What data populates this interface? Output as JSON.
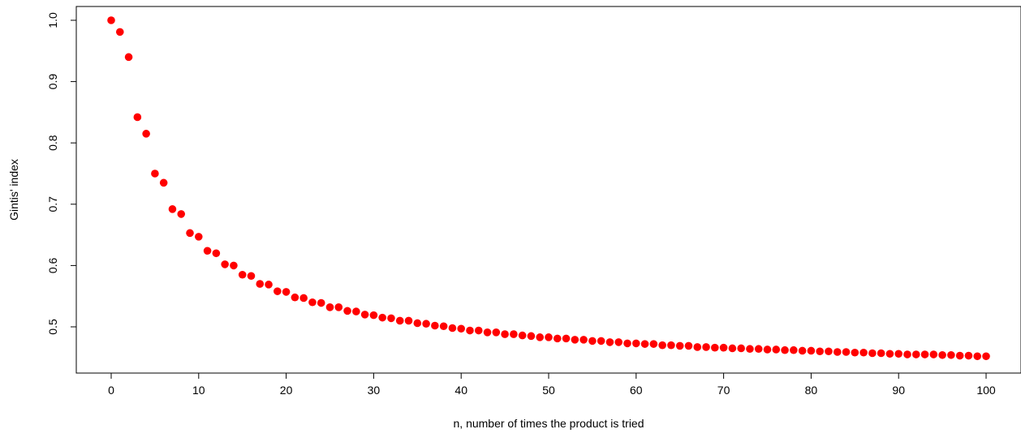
{
  "chart_data": {
    "type": "scatter",
    "title": "",
    "xlabel": "n, number of times the product is tried",
    "ylabel": "Gintis' index",
    "xlim": [
      0,
      100
    ],
    "ylim": [
      0.45,
      1.0
    ],
    "x_ticks": [
      0,
      10,
      20,
      30,
      40,
      50,
      60,
      70,
      80,
      90,
      100
    ],
    "y_ticks": [
      0.5,
      0.6,
      0.7,
      0.8,
      0.9,
      1.0
    ],
    "x_tick_labels": [
      "0",
      "10",
      "20",
      "30",
      "40",
      "50",
      "60",
      "70",
      "80",
      "90",
      "100"
    ],
    "y_tick_labels": [
      "0.5",
      "0.6",
      "0.7",
      "0.8",
      "0.9",
      "1.0"
    ],
    "grid": false,
    "point_color": "#ff0000",
    "x": [
      0,
      1,
      2,
      3,
      4,
      5,
      6,
      7,
      8,
      9,
      10,
      11,
      12,
      13,
      14,
      15,
      16,
      17,
      18,
      19,
      20,
      21,
      22,
      23,
      24,
      25,
      26,
      27,
      28,
      29,
      30,
      31,
      32,
      33,
      34,
      35,
      36,
      37,
      38,
      39,
      40,
      41,
      42,
      43,
      44,
      45,
      46,
      47,
      48,
      49,
      50,
      51,
      52,
      53,
      54,
      55,
      56,
      57,
      58,
      59,
      60,
      61,
      62,
      63,
      64,
      65,
      66,
      67,
      68,
      69,
      70,
      71,
      72,
      73,
      74,
      75,
      76,
      77,
      78,
      79,
      80,
      81,
      82,
      83,
      84,
      85,
      86,
      87,
      88,
      89,
      90,
      91,
      92,
      93,
      94,
      95,
      96,
      97,
      98,
      99,
      100
    ],
    "y": [
      1.0,
      0.981,
      0.94,
      0.842,
      0.815,
      0.75,
      0.735,
      0.692,
      0.684,
      0.653,
      0.647,
      0.624,
      0.62,
      0.602,
      0.6,
      0.585,
      0.583,
      0.57,
      0.569,
      0.558,
      0.557,
      0.548,
      0.547,
      0.54,
      0.539,
      0.532,
      0.532,
      0.526,
      0.525,
      0.52,
      0.519,
      0.515,
      0.514,
      0.51,
      0.51,
      0.506,
      0.505,
      0.502,
      0.501,
      0.498,
      0.497,
      0.494,
      0.494,
      0.491,
      0.491,
      0.488,
      0.488,
      0.486,
      0.485,
      0.483,
      0.483,
      0.481,
      0.481,
      0.479,
      0.479,
      0.477,
      0.477,
      0.475,
      0.475,
      0.473,
      0.473,
      0.472,
      0.472,
      0.47,
      0.47,
      0.469,
      0.469,
      0.467,
      0.467,
      0.466,
      0.466,
      0.465,
      0.465,
      0.464,
      0.464,
      0.463,
      0.463,
      0.462,
      0.462,
      0.461,
      0.461,
      0.46,
      0.46,
      0.459,
      0.459,
      0.458,
      0.458,
      0.457,
      0.457,
      0.456,
      0.456,
      0.455,
      0.455,
      0.455,
      0.455,
      0.454,
      0.454,
      0.453,
      0.453,
      0.452,
      0.452
    ]
  }
}
